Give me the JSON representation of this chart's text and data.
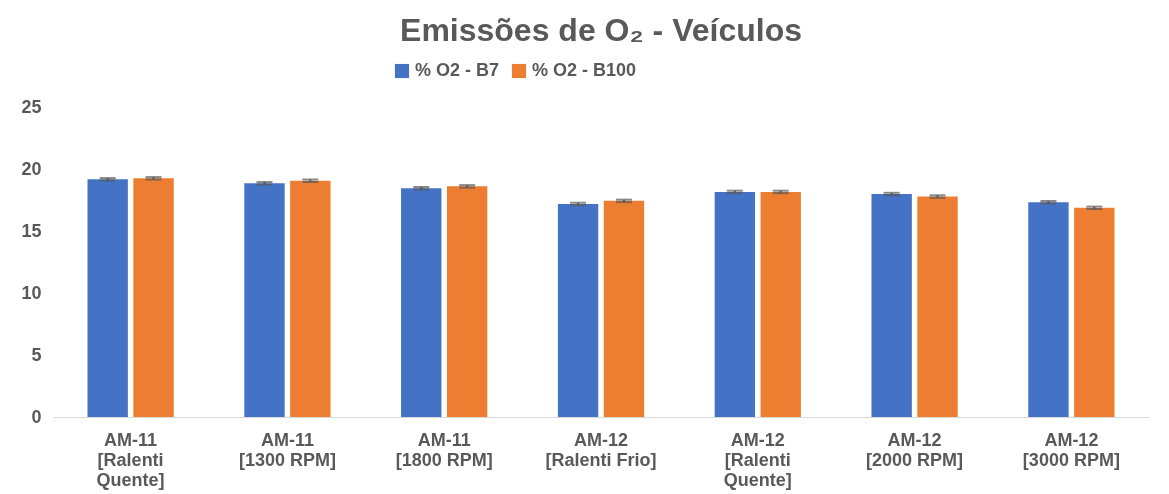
{
  "chart_data": {
    "type": "bar",
    "title": "Emissões de O₂ - Veículos",
    "categories": [
      "AM-11 [Ralenti Quente]",
      "AM-11 [1300 RPM]",
      "AM-11 [1800 RPM]",
      "AM-12 [Ralenti Frio]",
      "AM-12 [Ralenti Quente]",
      "AM-12 [2000 RPM]",
      "AM-12 [3000 RPM]"
    ],
    "series": [
      {
        "name": "% O2 - B7",
        "color": "#4472c4",
        "values": [
          19.17,
          18.85,
          18.45,
          17.18,
          18.15,
          17.98,
          17.32
        ],
        "errors": [
          0.1,
          0.1,
          0.1,
          0.1,
          0.1,
          0.1,
          0.1
        ]
      },
      {
        "name": "% O2 - B100",
        "color": "#ed7d31",
        "values": [
          19.25,
          19.06,
          18.6,
          17.43,
          18.15,
          17.78,
          16.87
        ],
        "errors": [
          0.1,
          0.1,
          0.1,
          0.1,
          0.1,
          0.1,
          0.1
        ]
      }
    ],
    "ylim": [
      0,
      25
    ],
    "yticks": [
      0,
      5,
      10,
      15,
      20,
      25
    ],
    "grid": false,
    "legend": "top"
  }
}
